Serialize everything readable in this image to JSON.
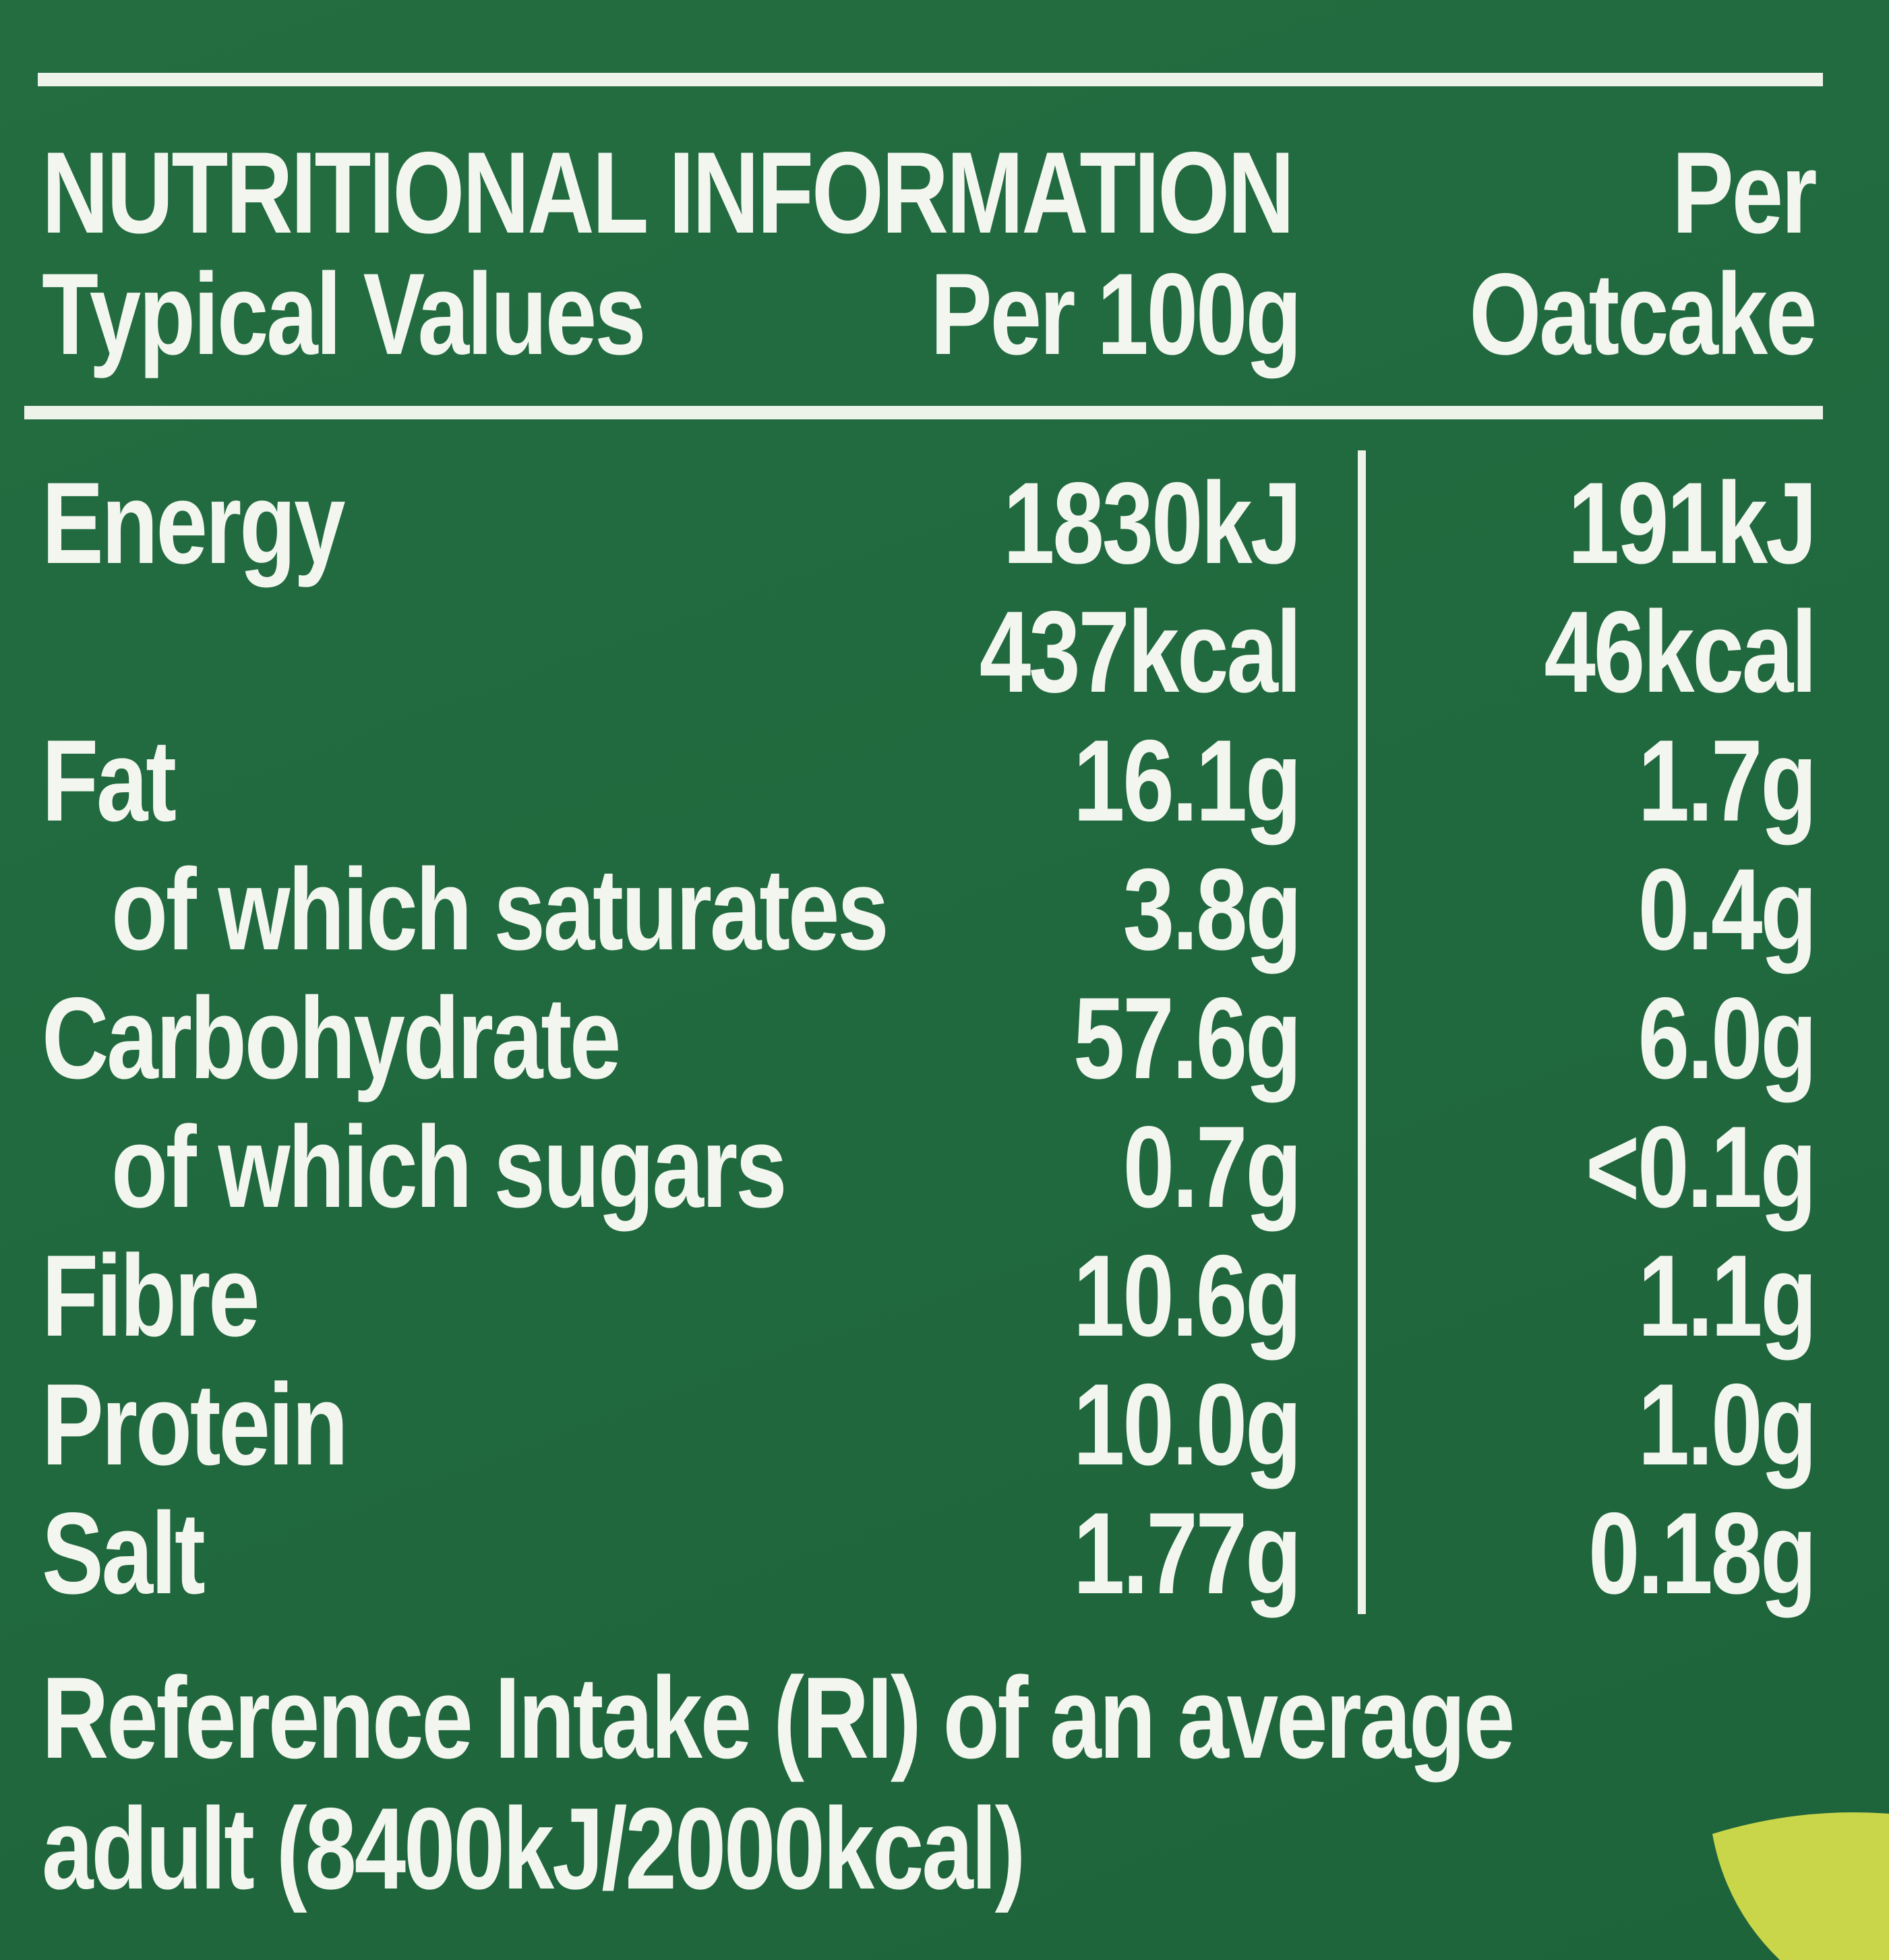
{
  "header": {
    "title": "NUTRITIONAL INFORMATION",
    "per_label_top": "Per",
    "column_label": "Typical Values",
    "per_100g": "Per 100g",
    "per_oatcake": "Oatcake"
  },
  "rows": [
    {
      "label": "Energy",
      "indent": false,
      "per_100g": "1830kJ",
      "per_oatcake": "191kJ"
    },
    {
      "label": null,
      "indent": false,
      "per_100g": "437kcal",
      "per_oatcake": "46kcal"
    },
    {
      "label": "Fat",
      "indent": false,
      "per_100g": "16.1g",
      "per_oatcake": "1.7g"
    },
    {
      "label": "of which saturates",
      "indent": true,
      "per_100g": "3.8g",
      "per_oatcake": "0.4g"
    },
    {
      "label": "Carbohydrate",
      "indent": false,
      "per_100g": "57.6g",
      "per_oatcake": "6.0g"
    },
    {
      "label": "of which sugars",
      "indent": true,
      "per_100g": "0.7g",
      "per_oatcake": "<0.1g"
    },
    {
      "label": "Fibre",
      "indent": false,
      "per_100g": "10.6g",
      "per_oatcake": "1.1g"
    },
    {
      "label": "Protein",
      "indent": false,
      "per_100g": "10.0g",
      "per_oatcake": "1.0g"
    },
    {
      "label": "Salt",
      "indent": false,
      "per_100g": "1.77g",
      "per_oatcake": "0.18g"
    }
  ],
  "footer": {
    "line1": "Reference Intake (RI) of an average",
    "line2": "adult (8400kJ/2000kcal)"
  }
}
